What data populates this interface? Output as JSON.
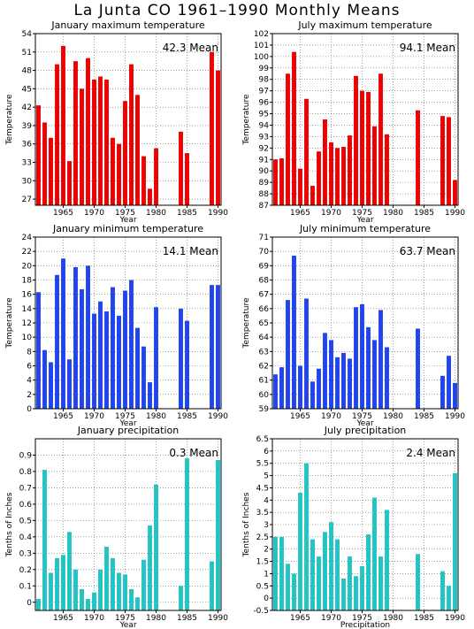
{
  "title": "La Junta CO   1961–1990 Monthly Means",
  "chart_data": [
    {
      "type": "bar",
      "title": "January maximum temperature",
      "ylabel": "Temperature",
      "xlabel": "Year",
      "mean_label": "42.3 Mean",
      "color": "#ee0000",
      "years": [
        1961,
        1962,
        1963,
        1964,
        1965,
        1966,
        1967,
        1968,
        1969,
        1970,
        1971,
        1972,
        1973,
        1974,
        1975,
        1976,
        1977,
        1978,
        1979,
        1980,
        1981,
        1982,
        1983,
        1984,
        1985,
        1986,
        1987,
        1988,
        1989,
        1990
      ],
      "values": [
        42.3,
        39.5,
        37,
        49,
        52,
        33.2,
        49.5,
        45,
        50,
        46.5,
        47,
        46.5,
        37,
        36,
        43,
        49,
        44,
        34,
        28.7,
        35.3,
        null,
        null,
        null,
        38,
        34.5,
        null,
        null,
        null,
        51,
        48
      ],
      "ylim": [
        26,
        54
      ],
      "yticks": [
        27,
        30,
        33,
        36,
        39,
        42,
        45,
        48,
        51,
        54
      ],
      "xticks": [
        1965,
        1970,
        1975,
        1980,
        1985,
        1990
      ]
    },
    {
      "type": "bar",
      "title": "July maximum temperature",
      "ylabel": "Temperature",
      "xlabel": "Year",
      "mean_label": "94.1 Mean",
      "color": "#ee0000",
      "years": [
        1961,
        1962,
        1963,
        1964,
        1965,
        1966,
        1967,
        1968,
        1969,
        1970,
        1971,
        1972,
        1973,
        1974,
        1975,
        1976,
        1977,
        1978,
        1979,
        1980,
        1981,
        1982,
        1983,
        1984,
        1985,
        1986,
        1987,
        1988,
        1989,
        1990
      ],
      "values": [
        91,
        91.1,
        98.5,
        100.4,
        90.2,
        96.3,
        88.7,
        91.7,
        94.5,
        92.5,
        92,
        92.1,
        93.1,
        98.3,
        97,
        96.9,
        93.9,
        98.5,
        93.2,
        null,
        null,
        null,
        null,
        95.3,
        null,
        null,
        null,
        94.8,
        94.7,
        89.2
      ],
      "ylim": [
        87,
        102
      ],
      "yticks": [
        87,
        88,
        89,
        90,
        91,
        92,
        93,
        94,
        95,
        96,
        97,
        98,
        99,
        100,
        101,
        102
      ],
      "xticks": [
        1965,
        1970,
        1975,
        1980,
        1985,
        1990
      ]
    },
    {
      "type": "bar",
      "title": "January minimum temperature",
      "ylabel": "Temperature",
      "xlabel": "Year",
      "mean_label": "14.1 Mean",
      "color": "#2244ee",
      "years": [
        1961,
        1962,
        1963,
        1964,
        1965,
        1966,
        1967,
        1968,
        1969,
        1970,
        1971,
        1972,
        1973,
        1974,
        1975,
        1976,
        1977,
        1978,
        1979,
        1980,
        1981,
        1982,
        1983,
        1984,
        1985,
        1986,
        1987,
        1988,
        1989,
        1990
      ],
      "values": [
        16.3,
        8.2,
        6.5,
        18.7,
        21,
        6.9,
        19.8,
        16.7,
        20,
        13.3,
        15,
        13.6,
        17,
        13,
        16.5,
        18,
        11.3,
        8.7,
        3.7,
        14.2,
        null,
        null,
        null,
        14,
        12.3,
        null,
        null,
        null,
        17.3,
        17.3
      ],
      "ylim": [
        0,
        24
      ],
      "yticks": [
        0,
        2,
        4,
        6,
        8,
        10,
        12,
        14,
        16,
        18,
        20,
        22,
        24
      ],
      "xticks": [
        1965,
        1970,
        1975,
        1980,
        1985,
        1990
      ]
    },
    {
      "type": "bar",
      "title": "July minimum temperature",
      "ylabel": "Temperature",
      "xlabel": "Year",
      "mean_label": "63.7 Mean",
      "color": "#2244ee",
      "years": [
        1961,
        1962,
        1963,
        1964,
        1965,
        1966,
        1967,
        1968,
        1969,
        1970,
        1971,
        1972,
        1973,
        1974,
        1975,
        1976,
        1977,
        1978,
        1979,
        1980,
        1981,
        1982,
        1983,
        1984,
        1985,
        1986,
        1987,
        1988,
        1989,
        1990
      ],
      "values": [
        61.4,
        61.9,
        66.6,
        69.7,
        62,
        66.7,
        60.9,
        61.8,
        64.3,
        63.8,
        62.6,
        62.9,
        62.5,
        66.1,
        66.3,
        64.7,
        63.8,
        65.9,
        63.3,
        null,
        null,
        null,
        null,
        64.6,
        null,
        null,
        null,
        61.3,
        62.7,
        60.8
      ],
      "ylim": [
        59,
        71
      ],
      "yticks": [
        59,
        60,
        61,
        62,
        63,
        64,
        65,
        66,
        67,
        68,
        69,
        70,
        71
      ],
      "xticks": [
        1965,
        1970,
        1975,
        1980,
        1985,
        1990
      ]
    },
    {
      "type": "bar",
      "title": "January precipitation",
      "ylabel": "Tenths of Inches",
      "xlabel": "Year",
      "mean_label": "0.3 Mean",
      "color": "#22c4c4",
      "years": [
        1961,
        1962,
        1963,
        1964,
        1965,
        1966,
        1967,
        1968,
        1969,
        1970,
        1971,
        1972,
        1973,
        1974,
        1975,
        1976,
        1977,
        1978,
        1979,
        1980,
        1981,
        1982,
        1983,
        1984,
        1985,
        1986,
        1987,
        1988,
        1989,
        1990
      ],
      "values": [
        0.02,
        0.81,
        0.18,
        0.27,
        0.29,
        0.43,
        0.2,
        0.08,
        0.02,
        0.06,
        0.2,
        0.34,
        0.27,
        0.18,
        0.17,
        0.08,
        0.03,
        0.26,
        0.47,
        0.72,
        null,
        null,
        null,
        0.1,
        0.88,
        null,
        null,
        null,
        0.25,
        0.87
      ],
      "ylim": [
        -0.05,
        1.0
      ],
      "yticks": [
        0,
        0.1,
        0.2,
        0.3,
        0.4,
        0.5,
        0.6,
        0.7,
        0.8,
        0.9
      ],
      "xticks": [
        1965,
        1970,
        1975,
        1980,
        1985,
        1990
      ]
    },
    {
      "type": "bar",
      "title": "July precipitation",
      "ylabel": "Tenths of Inches",
      "xlabel": "Precipitation",
      "mean_label": "2.4 Mean",
      "color": "#22c4c4",
      "years": [
        1961,
        1962,
        1963,
        1964,
        1965,
        1966,
        1967,
        1968,
        1969,
        1970,
        1971,
        1972,
        1973,
        1974,
        1975,
        1976,
        1977,
        1978,
        1979,
        1980,
        1981,
        1982,
        1983,
        1984,
        1985,
        1986,
        1987,
        1988,
        1989,
        1990
      ],
      "values": [
        2.5,
        2.5,
        1.4,
        1.0,
        4.3,
        5.5,
        2.4,
        1.7,
        2.7,
        3.1,
        2.4,
        0.8,
        1.7,
        0.9,
        1.3,
        2.6,
        4.1,
        1.7,
        3.6,
        null,
        null,
        null,
        null,
        1.8,
        null,
        null,
        null,
        1.1,
        0.5,
        5.1
      ],
      "ylim": [
        -0.5,
        6.5
      ],
      "yticks": [
        -0.5,
        0,
        0.5,
        1,
        1.5,
        2,
        2.5,
        3,
        3.5,
        4,
        4.5,
        5,
        5.5,
        6,
        6.5
      ],
      "xticks": [
        1965,
        1970,
        1975,
        1980,
        1985,
        1990
      ]
    }
  ]
}
